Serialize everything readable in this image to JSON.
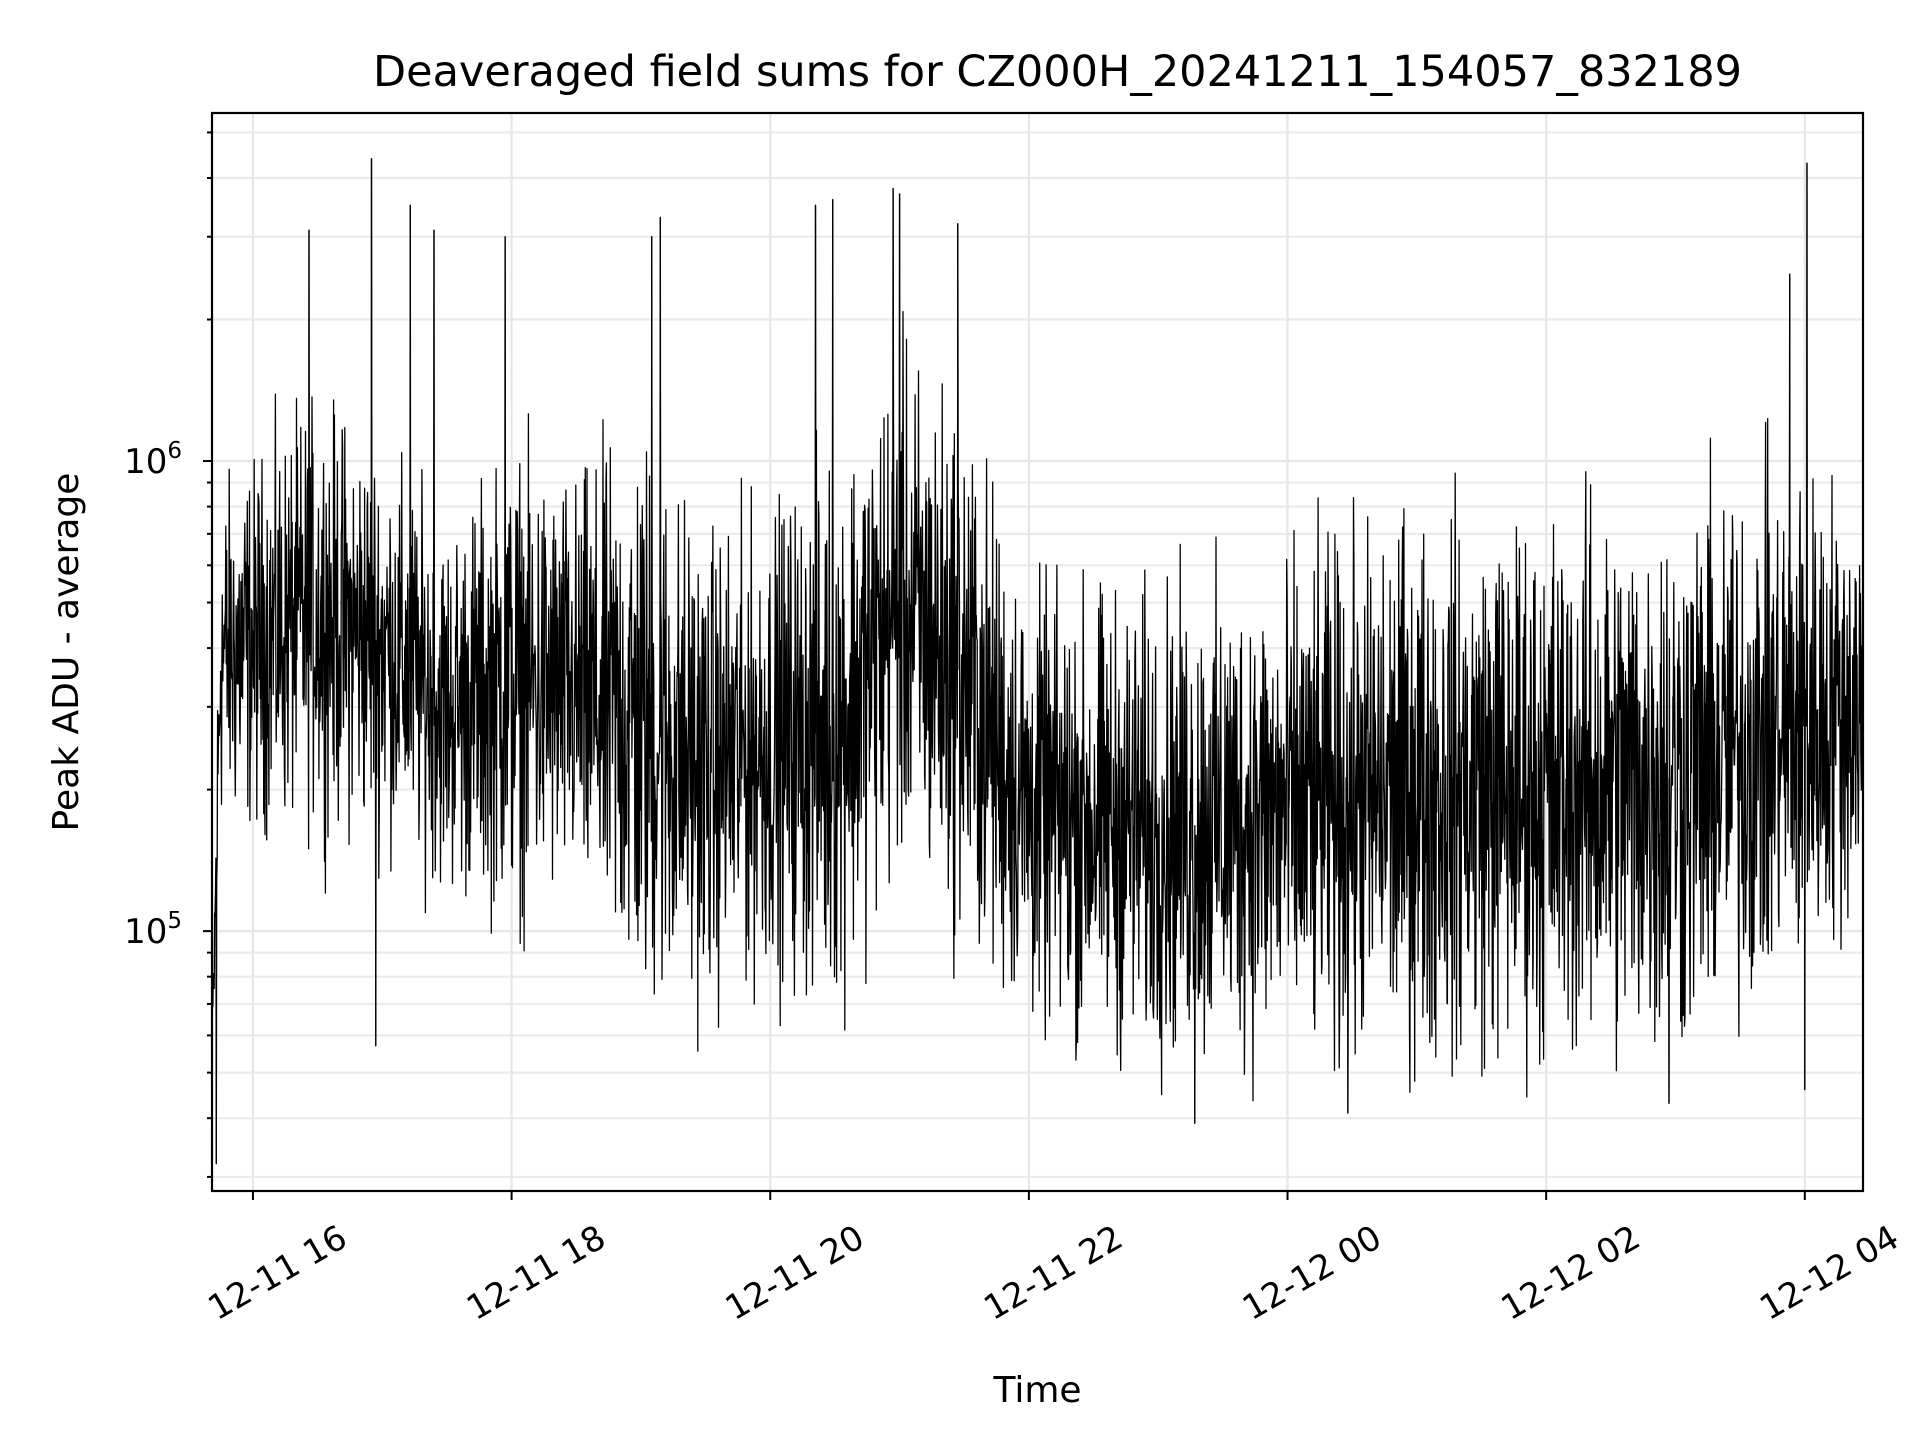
{
  "chart_data": {
    "type": "line",
    "title": "Deaveraged field sums for CZ000H_20241211_154057_832189",
    "xlabel": "Time",
    "ylabel": "Peak ADU - average",
    "yscale": "log",
    "ylim": [
      28000,
      5500000
    ],
    "xlim": [
      "2024-12-11 15:41",
      "2024-12-12 04:27"
    ],
    "grid": true,
    "x_ticks": [
      {
        "value": "2024-12-11 16:00",
        "label": "12-11 16"
      },
      {
        "value": "2024-12-11 18:00",
        "label": "12-11 18"
      },
      {
        "value": "2024-12-11 20:00",
        "label": "12-11 20"
      },
      {
        "value": "2024-12-11 22:00",
        "label": "12-11 22"
      },
      {
        "value": "2024-12-12 00:00",
        "label": "12-12 00"
      },
      {
        "value": "2024-12-12 02:00",
        "label": "12-12 02"
      },
      {
        "value": "2024-12-12 04:00",
        "label": "12-12 04"
      }
    ],
    "y_ticks": [
      {
        "value": 100000,
        "base": "10",
        "exp": "5"
      },
      {
        "value": 1000000,
        "base": "10",
        "exp": "6"
      }
    ],
    "series": [
      {
        "color": "#000000",
        "values_summary": "Dense noisy series, one point per ~12 s; envelope below gives the typical band and notable spikes per time window",
        "envelope": [
          {
            "t": "2024-12-11 15:41",
            "low": 35000,
            "high": 75000
          },
          {
            "t": "2024-12-11 15:45",
            "low": 150000,
            "high": 1000000
          },
          {
            "t": "2024-12-11 16:00",
            "low": 150000,
            "high": 1100000
          },
          {
            "t": "2024-12-11 16:30",
            "low": 150000,
            "high": 1500000
          },
          {
            "t": "2024-12-11 17:00",
            "low": 140000,
            "high": 1200000
          },
          {
            "t": "2024-12-11 17:30",
            "low": 110000,
            "high": 800000
          },
          {
            "t": "2024-12-11 18:00",
            "low": 95000,
            "high": 1200000
          },
          {
            "t": "2024-12-11 18:30",
            "low": 100000,
            "high": 1000000
          },
          {
            "t": "2024-12-11 19:00",
            "low": 55000,
            "high": 1400000
          },
          {
            "t": "2024-12-11 19:30",
            "low": 60000,
            "high": 800000
          },
          {
            "t": "2024-12-11 20:00",
            "low": 70000,
            "high": 900000
          },
          {
            "t": "2024-12-11 20:30",
            "low": 60000,
            "high": 1200000
          },
          {
            "t": "2024-12-11 21:00",
            "low": 120000,
            "high": 2000000
          },
          {
            "t": "2024-12-11 21:30",
            "low": 80000,
            "high": 1500000
          },
          {
            "t": "2024-12-11 22:00",
            "low": 55000,
            "high": 600000
          },
          {
            "t": "2024-12-11 23:00",
            "low": 45000,
            "high": 600000
          },
          {
            "t": "2024-12-12 00:00",
            "low": 45000,
            "high": 700000
          },
          {
            "t": "2024-12-12 01:00",
            "low": 45000,
            "high": 900000
          },
          {
            "t": "2024-12-12 02:00",
            "low": 45000,
            "high": 900000
          },
          {
            "t": "2024-12-12 03:00",
            "low": 45000,
            "high": 1000000
          },
          {
            "t": "2024-12-12 04:00",
            "low": 70000,
            "high": 1100000
          },
          {
            "t": "2024-12-12 04:27",
            "low": 95000,
            "high": 1000000
          }
        ],
        "spikes": [
          {
            "t": "2024-12-11 16:26",
            "value": 3100000
          },
          {
            "t": "2024-12-11 16:55",
            "value": 4400000
          },
          {
            "t": "2024-12-11 17:13",
            "value": 3500000
          },
          {
            "t": "2024-12-11 17:24",
            "value": 3100000
          },
          {
            "t": "2024-12-11 17:57",
            "value": 3000000
          },
          {
            "t": "2024-12-11 19:05",
            "value": 3000000
          },
          {
            "t": "2024-12-11 19:09",
            "value": 3300000
          },
          {
            "t": "2024-12-11 20:21",
            "value": 3500000
          },
          {
            "t": "2024-12-11 20:29",
            "value": 3600000
          },
          {
            "t": "2024-12-11 20:57",
            "value": 3800000
          },
          {
            "t": "2024-12-11 21:00",
            "value": 3700000
          },
          {
            "t": "2024-12-11 21:27",
            "value": 3200000
          },
          {
            "t": "2024-12-12 03:53",
            "value": 2500000
          },
          {
            "t": "2024-12-12 04:01",
            "value": 4300000
          }
        ],
        "dips": [
          {
            "t": "2024-12-11 15:43",
            "value": 32000
          },
          {
            "t": "2024-12-11 16:57",
            "value": 57000
          },
          {
            "t": "2024-12-11 23:17",
            "value": 39000
          },
          {
            "t": "2024-12-12 00:28",
            "value": 41000
          },
          {
            "t": "2024-12-12 02:57",
            "value": 43000
          },
          {
            "t": "2024-12-12 04:00",
            "value": 46000
          }
        ]
      }
    ]
  }
}
